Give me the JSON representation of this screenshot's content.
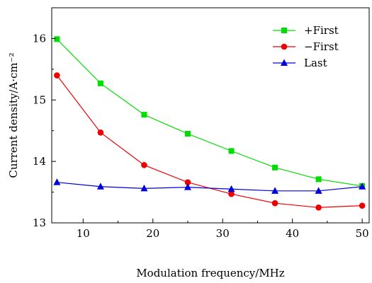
{
  "chart_data": {
    "type": "line",
    "xlabel": "Modulation frequency/MHz",
    "ylabel": "Current density/A·cm⁻²",
    "xlim": [
      5.5,
      51
    ],
    "ylim": [
      13,
      16.5
    ],
    "xticks": [
      10,
      20,
      30,
      40,
      50
    ],
    "yticks": [
      13,
      14,
      15,
      16
    ],
    "x_tick_labels": [
      "10",
      "20",
      "30",
      "40",
      "50"
    ],
    "y_tick_labels": [
      "13",
      "14",
      "15",
      "16"
    ],
    "grid": false,
    "legend_position": "top-right",
    "x": [
      6.25,
      12.5,
      18.75,
      25,
      31.25,
      37.5,
      43.75,
      50
    ],
    "series": [
      {
        "name": "+First",
        "color": "#00dd00",
        "marker": "square",
        "values": [
          15.99,
          15.27,
          14.76,
          14.45,
          14.17,
          13.9,
          13.71,
          13.6
        ]
      },
      {
        "name": "−First",
        "color": "#ee0000",
        "marker": "circle",
        "values": [
          15.4,
          14.47,
          13.94,
          13.66,
          13.47,
          13.32,
          13.25,
          13.28
        ]
      },
      {
        "name": "Last",
        "color": "#0000dd",
        "marker": "triangle",
        "values": [
          13.66,
          13.59,
          13.56,
          13.58,
          13.55,
          13.52,
          13.52,
          13.59
        ]
      }
    ]
  }
}
